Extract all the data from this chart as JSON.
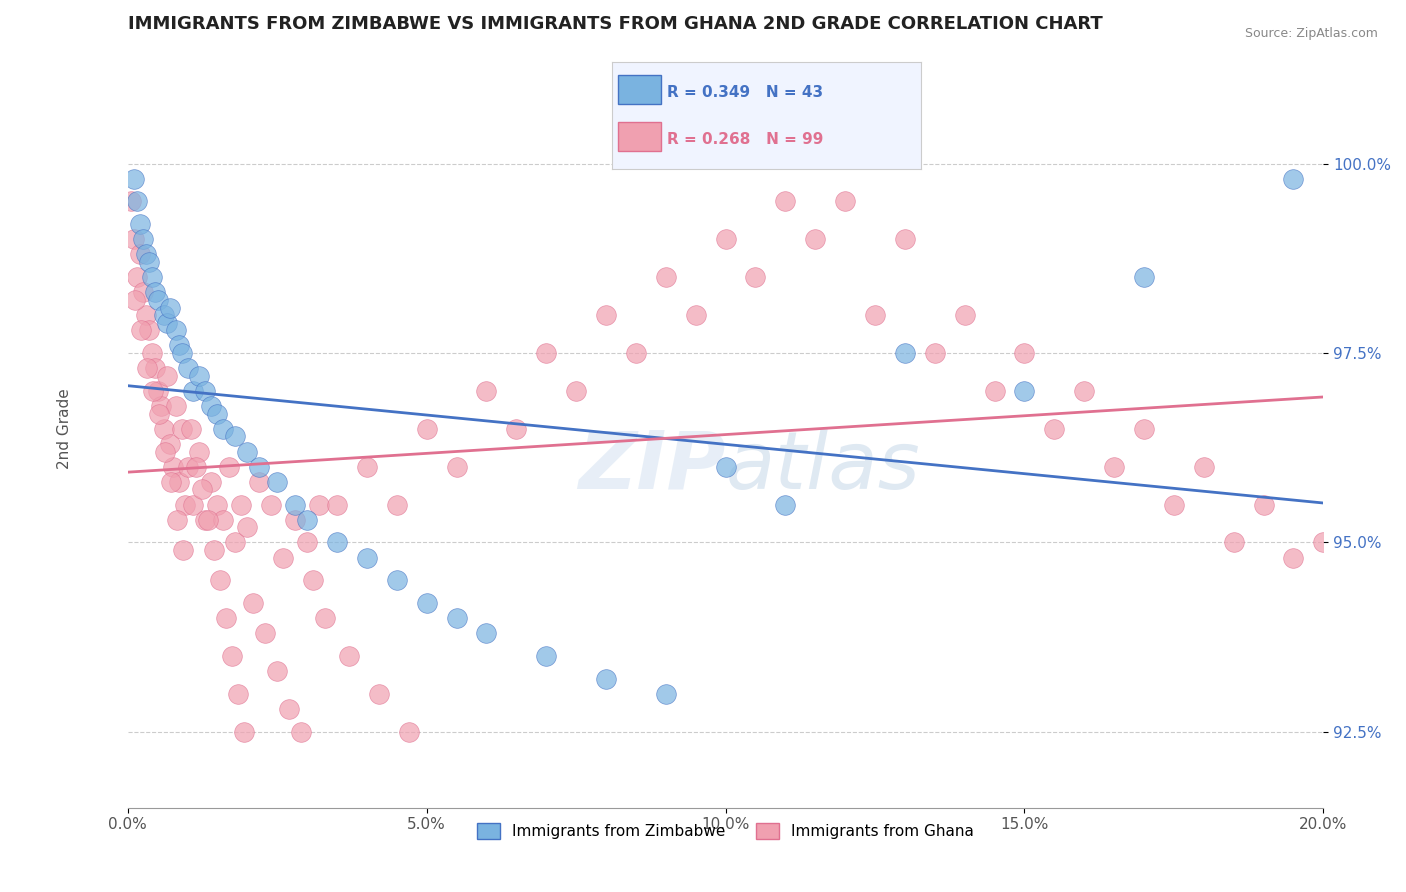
{
  "title": "IMMIGRANTS FROM ZIMBABWE VS IMMIGRANTS FROM GHANA 2ND GRADE CORRELATION CHART",
  "source": "Source: ZipAtlas.com",
  "xlabel": "",
  "ylabel": "2nd Grade",
  "xlim": [
    0.0,
    20.0
  ],
  "ylim": [
    91.5,
    101.5
  ],
  "yticks": [
    92.5,
    95.0,
    97.5,
    100.0
  ],
  "ytick_labels": [
    "92.5%",
    "95.0%",
    "97.5%",
    "100.0%"
  ],
  "xticks": [
    0.0,
    5.0,
    10.0,
    15.0,
    20.0
  ],
  "xtick_labels": [
    "0.0%",
    "5.0%",
    "10.0%",
    "15.0%",
    "20.0%"
  ],
  "background_color": "#ffffff",
  "watermark": "ZIPatlas",
  "zimbabwe_color": "#7ab3e0",
  "ghana_color": "#f0a0b0",
  "zimbabwe_R": 0.349,
  "zimbabwe_N": 43,
  "ghana_R": 0.268,
  "ghana_N": 99,
  "zimbabwe_line_color": "#4472c4",
  "ghana_line_color": "#e07090",
  "legend_box_color": "#f0f4ff",
  "zimbabwe_x": [
    0.1,
    0.15,
    0.2,
    0.25,
    0.3,
    0.35,
    0.4,
    0.45,
    0.5,
    0.6,
    0.65,
    0.7,
    0.8,
    0.85,
    0.9,
    1.0,
    1.1,
    1.2,
    1.3,
    1.4,
    1.5,
    1.6,
    1.8,
    2.0,
    2.2,
    2.5,
    2.8,
    3.0,
    3.5,
    4.0,
    4.5,
    5.0,
    5.5,
    6.0,
    7.0,
    8.0,
    9.0,
    10.0,
    11.0,
    13.0,
    15.0,
    17.0,
    19.5
  ],
  "zimbabwe_y": [
    99.8,
    99.5,
    99.2,
    99.0,
    98.8,
    98.7,
    98.5,
    98.3,
    98.2,
    98.0,
    97.9,
    98.1,
    97.8,
    97.6,
    97.5,
    97.3,
    97.0,
    97.2,
    97.0,
    96.8,
    96.7,
    96.5,
    96.4,
    96.2,
    96.0,
    95.8,
    95.5,
    95.3,
    95.0,
    94.8,
    94.5,
    94.2,
    94.0,
    93.8,
    93.5,
    93.2,
    93.0,
    96.0,
    95.5,
    97.5,
    97.0,
    98.5,
    99.8
  ],
  "ghana_x": [
    0.05,
    0.1,
    0.15,
    0.2,
    0.25,
    0.3,
    0.35,
    0.4,
    0.45,
    0.5,
    0.55,
    0.6,
    0.65,
    0.7,
    0.75,
    0.8,
    0.85,
    0.9,
    0.95,
    1.0,
    1.1,
    1.2,
    1.3,
    1.4,
    1.5,
    1.6,
    1.7,
    1.8,
    1.9,
    2.0,
    2.2,
    2.4,
    2.6,
    2.8,
    3.0,
    3.2,
    3.5,
    4.0,
    4.5,
    5.0,
    5.5,
    6.0,
    6.5,
    7.0,
    7.5,
    8.0,
    8.5,
    9.0,
    9.5,
    10.0,
    10.5,
    11.0,
    11.5,
    12.0,
    12.5,
    13.0,
    13.5,
    14.0,
    14.5,
    15.0,
    15.5,
    16.0,
    16.5,
    17.0,
    17.5,
    18.0,
    18.5,
    19.0,
    19.5,
    20.0,
    0.12,
    0.22,
    0.32,
    0.42,
    0.52,
    0.62,
    0.72,
    0.82,
    0.92,
    1.05,
    1.15,
    1.25,
    1.35,
    1.45,
    1.55,
    1.65,
    1.75,
    1.85,
    1.95,
    2.1,
    2.3,
    2.5,
    2.7,
    2.9,
    3.1,
    3.3,
    3.7,
    4.2,
    4.7
  ],
  "ghana_y": [
    99.5,
    99.0,
    98.5,
    98.8,
    98.3,
    98.0,
    97.8,
    97.5,
    97.3,
    97.0,
    96.8,
    96.5,
    97.2,
    96.3,
    96.0,
    96.8,
    95.8,
    96.5,
    95.5,
    96.0,
    95.5,
    96.2,
    95.3,
    95.8,
    95.5,
    95.3,
    96.0,
    95.0,
    95.5,
    95.2,
    95.8,
    95.5,
    94.8,
    95.3,
    95.0,
    95.5,
    95.5,
    96.0,
    95.5,
    96.5,
    96.0,
    97.0,
    96.5,
    97.5,
    97.0,
    98.0,
    97.5,
    98.5,
    98.0,
    99.0,
    98.5,
    99.5,
    99.0,
    99.5,
    98.0,
    99.0,
    97.5,
    98.0,
    97.0,
    97.5,
    96.5,
    97.0,
    96.0,
    96.5,
    95.5,
    96.0,
    95.0,
    95.5,
    94.8,
    95.0,
    98.2,
    97.8,
    97.3,
    97.0,
    96.7,
    96.2,
    95.8,
    95.3,
    94.9,
    96.5,
    96.0,
    95.7,
    95.3,
    94.9,
    94.5,
    94.0,
    93.5,
    93.0,
    92.5,
    94.2,
    93.8,
    93.3,
    92.8,
    92.5,
    94.5,
    94.0,
    93.5,
    93.0,
    92.5
  ]
}
